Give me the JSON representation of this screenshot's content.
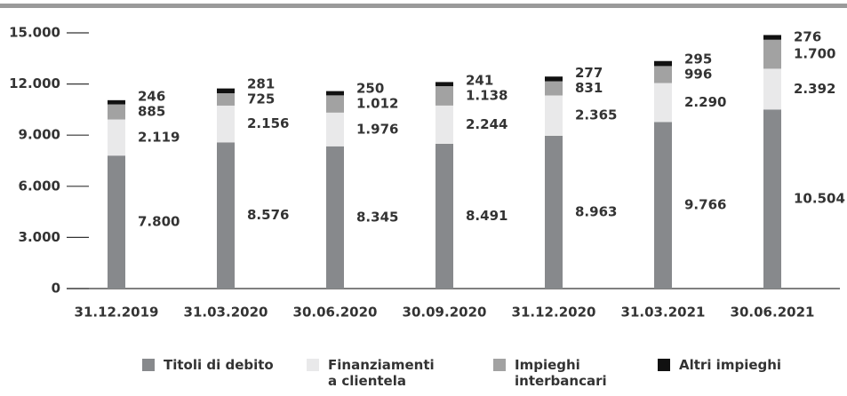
{
  "chart_data": {
    "type": "stacked_bar",
    "categories": [
      "31.12.2019",
      "31.03.2020",
      "30.06.2020",
      "30.09.2020",
      "31.12.2020",
      "31.03.2021",
      "30.06.2021"
    ],
    "series": [
      {
        "name": "Titoli di debito",
        "color": "#87898c",
        "values": [
          7800,
          8576,
          8345,
          8491,
          8963,
          9766,
          10504
        ],
        "value_labels": [
          "7.800",
          "8.576",
          "8.345",
          "8.491",
          "8.963",
          "9.766",
          "10.504"
        ]
      },
      {
        "name": "Finanziamenti a clientela",
        "color": "#e9e9ea",
        "values": [
          2119,
          2156,
          1976,
          2244,
          2365,
          2290,
          2392
        ],
        "value_labels": [
          "2.119",
          "2.156",
          "1.976",
          "2.244",
          "2.365",
          "2.290",
          "2.392"
        ]
      },
      {
        "name": "Impieghi interbancari",
        "color": "#a2a2a2",
        "values": [
          885,
          725,
          1012,
          1138,
          831,
          996,
          1700
        ],
        "value_labels": [
          "885",
          "725",
          "1.012",
          "1.138",
          "831",
          "996",
          "1.700"
        ]
      },
      {
        "name": "Altri impieghi",
        "color": "#111111",
        "values": [
          246,
          281,
          250,
          241,
          277,
          295,
          276
        ]
      }
    ],
    "ylim": [
      0,
      15000
    ],
    "yticks": [
      0,
      {
        "value": 3000,
        "label": "3.000"
      },
      {
        "value": 6000,
        "label": "6.000"
      },
      {
        "value": 9000,
        "label": "9.000"
      },
      {
        "value": 12000,
        "label": "12.000"
      },
      {
        "value": 15000,
        "label": "15.000"
      }
    ],
    "legend": "bottom"
  }
}
